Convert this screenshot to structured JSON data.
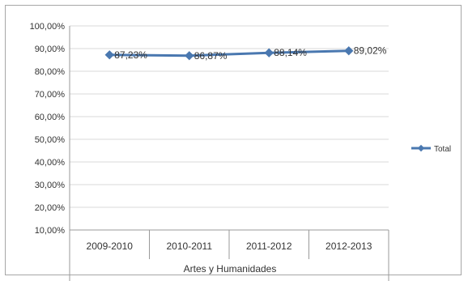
{
  "chart_data": {
    "type": "line",
    "title": "",
    "xlabel": "Artes y Humanidades",
    "ylabel": "",
    "categories": [
      "2009-2010",
      "2010-2011",
      "2011-2012",
      "2012-2013"
    ],
    "y_ticks": [
      "10,00%",
      "20,00%",
      "30,00%",
      "40,00%",
      "50,00%",
      "60,00%",
      "70,00%",
      "80,00%",
      "90,00%",
      "100,00%"
    ],
    "ylim": [
      10,
      100
    ],
    "grid": true,
    "legend_position": "right",
    "series": [
      {
        "name": "Total",
        "values": [
          87.23,
          86.87,
          88.14,
          89.02
        ],
        "labels": [
          "87,23%",
          "86,87%",
          "88,14%",
          "89,02%"
        ],
        "color": "#4a78b0"
      }
    ]
  }
}
